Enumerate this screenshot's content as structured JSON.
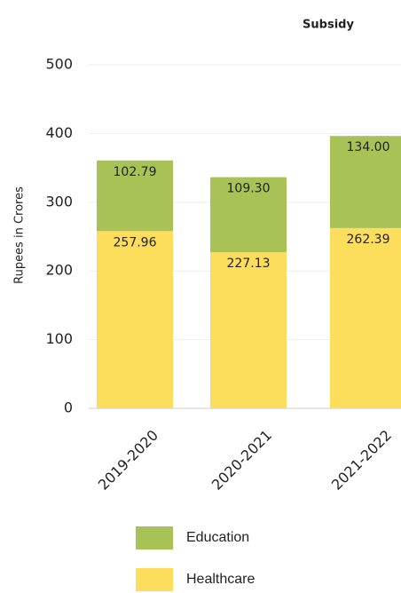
{
  "chart_data": {
    "type": "stacked_bar",
    "title": "Subsidy",
    "y_label": "Rupees in Crores",
    "categories": [
      "2019-2020",
      "2020-2021",
      "2021-2022"
    ],
    "series": [
      {
        "name": "Healthcare",
        "color": "#fddd5c",
        "values": [
          257.96,
          227.13,
          262.39
        ],
        "value_labels": [
          "257.96",
          "227.13",
          "262.39"
        ]
      },
      {
        "name": "Education",
        "color": "#a8c256",
        "values": [
          102.79,
          109.3,
          134
        ],
        "value_labels": [
          "102.79",
          "109.30",
          "134.00"
        ]
      }
    ],
    "ylim": [
      0,
      500
    ],
    "yticks": [
      0,
      100,
      200,
      300,
      400,
      500
    ],
    "grid": true
  }
}
